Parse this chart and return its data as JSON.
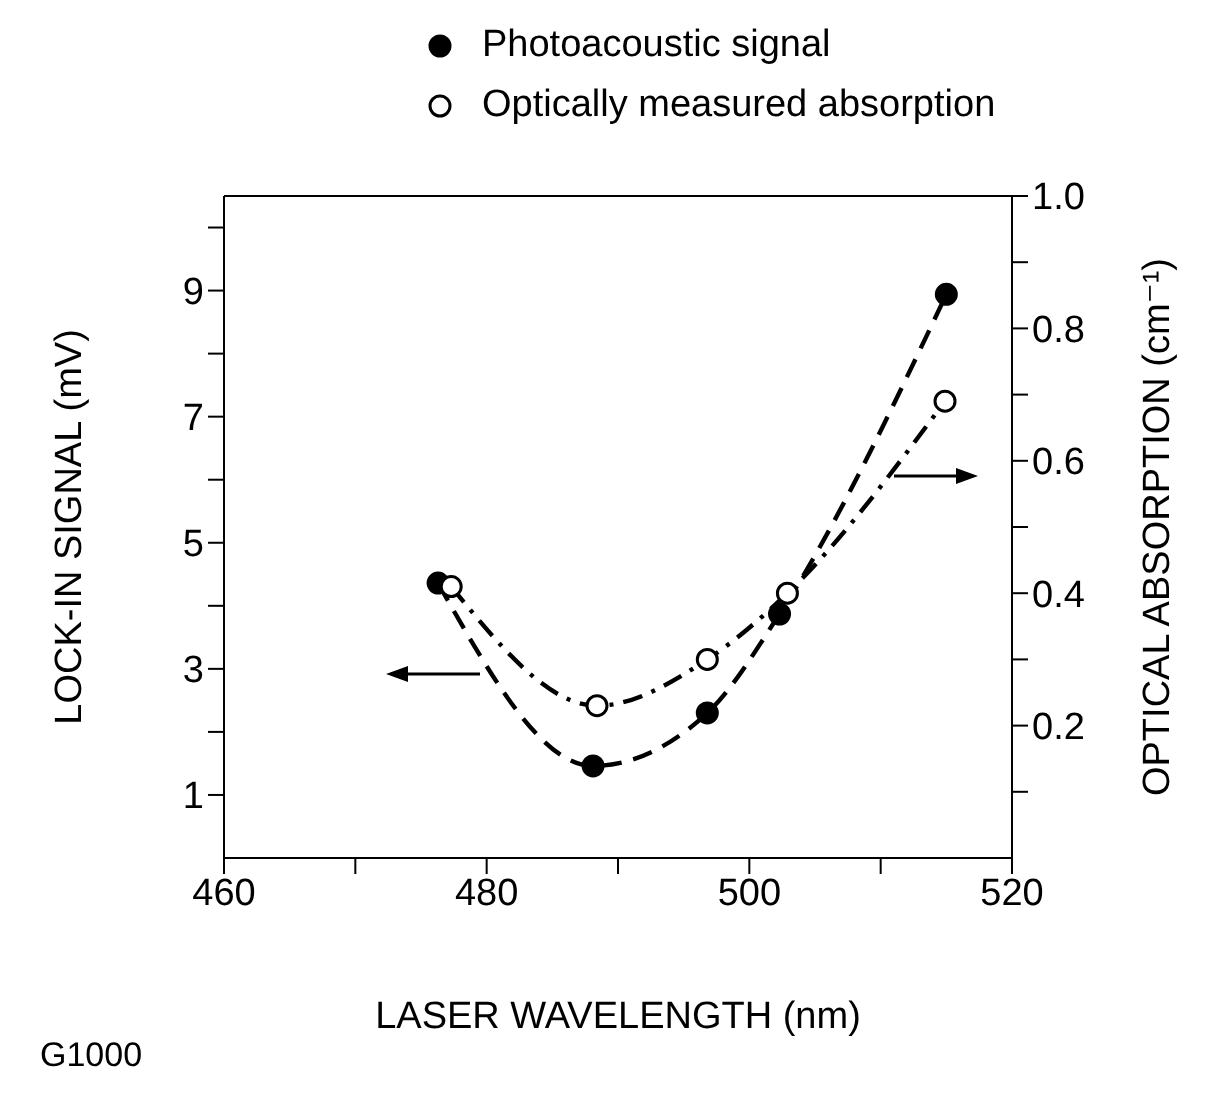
{
  "chart_data": {
    "type": "line",
    "xlabel": "LASER WAVELENGTH (nm)",
    "ylabel": "LOCK-IN SIGNAL (mV)",
    "y2label": "OPTICAL ABSORPTION (cm⁻¹)",
    "annotations": [
      "G1000"
    ],
    "xlim": [
      460,
      520
    ],
    "xticks": [
      460,
      {
        "value": 470,
        "label": null
      },
      480,
      {
        "value": 490,
        "label": null
      },
      500,
      {
        "value": 510,
        "label": null
      },
      520
    ],
    "ylim": [
      0,
      10.5
    ],
    "yticks": [
      1,
      {
        "value": 2,
        "label": null
      },
      3,
      {
        "value": 4,
        "label": null
      },
      5,
      {
        "value": 6,
        "label": null
      },
      7,
      {
        "value": 8,
        "label": null
      },
      9,
      {
        "value": 10,
        "label": null
      }
    ],
    "y2lim": [
      0,
      1
    ],
    "y2ticks": [
      {
        "value": 0.1,
        "label": null
      },
      0.2,
      {
        "value": 0.3,
        "label": null
      },
      0.4,
      {
        "value": 0.5,
        "label": null
      },
      0.6,
      {
        "value": 0.7,
        "label": null
      },
      0.8,
      {
        "value": 0.9,
        "label": null
      },
      {
        "value": 1,
        "label": "1.0"
      }
    ],
    "legend": "top",
    "marker": "circle",
    "series": [
      {
        "name": "Photoacoustic signal",
        "color": "#000000",
        "line_style": "dashed",
        "x": [
          476.3,
          488.1,
          496.8,
          502.3,
          515.0
        ],
        "values": [
          4.36,
          1.46,
          2.3,
          3.87,
          8.94
        ]
      },
      {
        "name": "Optically measured absorption",
        "color": "#000000",
        "line_style": "dashdot",
        "axis": "y2",
        "x": [
          477.3,
          488.4,
          496.8,
          502.9,
          514.9
        ],
        "values": [
          0.41,
          0.23,
          0.3,
          0.4,
          0.69
        ]
      }
    ]
  }
}
